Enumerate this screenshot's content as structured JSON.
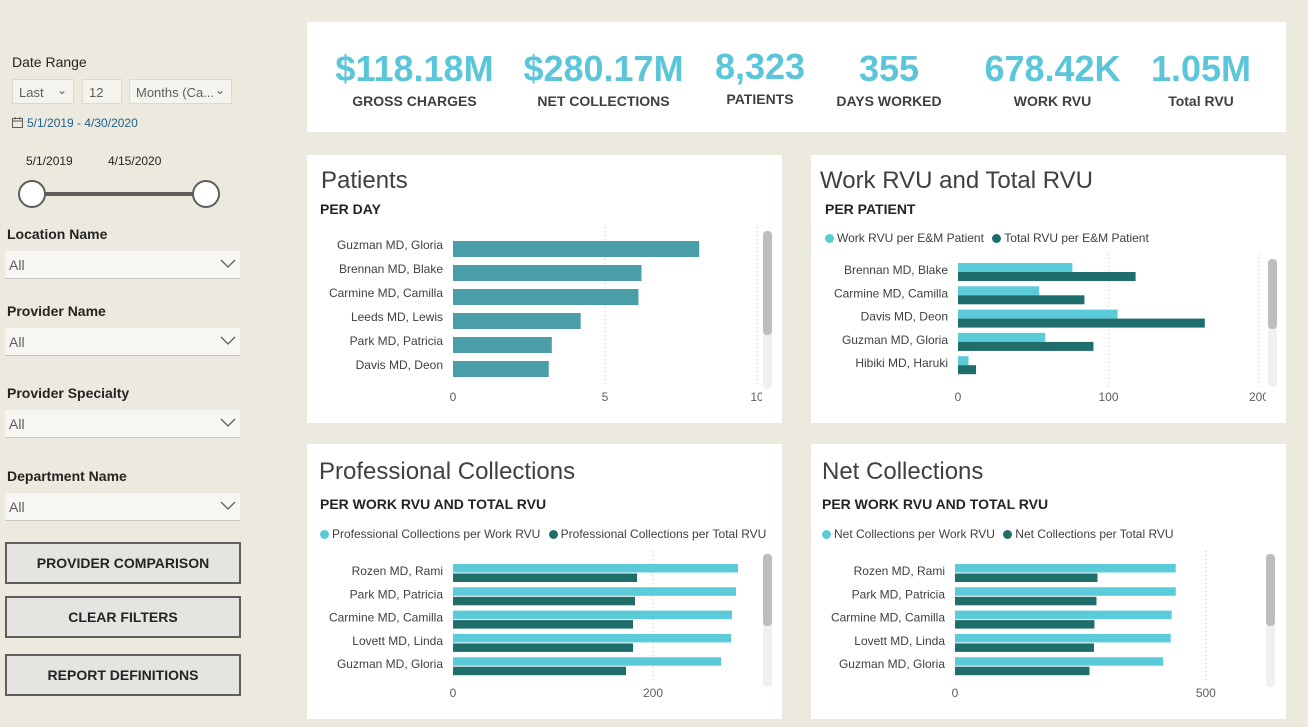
{
  "colors": {
    "accent": "#5bc6d9",
    "teal": "#4a9ea8",
    "dark_teal": "#1f6e6c",
    "light_teal": "#5bcbd9"
  },
  "sidebar": {
    "date_range": {
      "title": "Date Range",
      "period_select": "Last",
      "count_value": "12",
      "unit_select": "Months (Ca...",
      "range_text": "5/1/2019 - 4/30/2020",
      "slider_start": "5/1/2019",
      "slider_end": "4/15/2020"
    },
    "filters": [
      {
        "label": "Location Name",
        "value": "All"
      },
      {
        "label": "Provider Name",
        "value": "All"
      },
      {
        "label": "Provider Specialty",
        "value": "All"
      },
      {
        "label": "Department Name",
        "value": "All"
      }
    ],
    "buttons": {
      "provider_comparison": "PROVIDER COMPARISON",
      "clear_filters": "CLEAR FILTERS",
      "report_definitions": "REPORT DEFINITIONS"
    }
  },
  "kpis": [
    {
      "value": "$118.18M",
      "label": "GROSS CHARGES"
    },
    {
      "value": "$280.17M",
      "label": "NET COLLECTIONS"
    },
    {
      "value": "8,323",
      "label": "PATIENTS"
    },
    {
      "value": "355",
      "label": "DAYS WORKED"
    },
    {
      "value": "678.42K",
      "label": "WORK RVU"
    },
    {
      "value": "1.05M",
      "label": "Total RVU"
    }
  ],
  "chart_data": [
    {
      "type": "bar",
      "title": "Patients",
      "subtitle": "PER DAY",
      "categories": [
        "Guzman MD, Gloria",
        "Brennan MD, Blake",
        "Carmine MD, Camilla",
        "Leeds MD, Lewis",
        "Park MD, Patricia",
        "Davis MD, Deon"
      ],
      "values": [
        8.1,
        6.2,
        6.1,
        4.2,
        3.25,
        3.15
      ],
      "xlim": [
        0,
        10
      ],
      "ticks": [
        0,
        5,
        10
      ],
      "tick_labels": [
        "0",
        "5",
        "10"
      ]
    },
    {
      "type": "bar",
      "title": "Work RVU and Total RVU",
      "subtitle": "PER PATIENT",
      "categories": [
        "Brennan MD, Blake",
        "Carmine MD, Camilla",
        "Davis MD, Deon",
        "Guzman MD, Gloria",
        "Hibiki MD, Haruki"
      ],
      "series": [
        {
          "name": "Work RVU per E&M Patient",
          "values": [
            76,
            54,
            106,
            58,
            7
          ]
        },
        {
          "name": "Total RVU per E&M Patient",
          "values": [
            118,
            84,
            164,
            90,
            12
          ]
        }
      ],
      "xlim": [
        0,
        200
      ],
      "ticks": [
        0,
        100,
        200
      ],
      "tick_labels": [
        "0",
        "100",
        "200"
      ]
    },
    {
      "type": "bar",
      "title": "Professional Collections",
      "subtitle": "PER WORK RVU AND TOTAL RVU",
      "categories": [
        "Rozen MD, Rami",
        "Park MD, Patricia",
        "Carmine MD, Camilla",
        "Lovett MD, Linda",
        "Guzman MD, Gloria"
      ],
      "series": [
        {
          "name": "Professional Collections per Work RVU",
          "values": [
            285,
            283,
            279,
            278,
            268
          ]
        },
        {
          "name": "Professional Collections per Total RVU",
          "values": [
            184,
            182,
            180,
            180,
            173
          ]
        }
      ],
      "xlim": [
        0,
        300
      ],
      "ticks": [
        0,
        200
      ],
      "tick_labels": [
        "0",
        "200"
      ]
    },
    {
      "type": "bar",
      "title": "Net Collections",
      "subtitle": "PER WORK RVU AND TOTAL RVU",
      "categories": [
        "Rozen MD, Rami",
        "Park MD, Patricia",
        "Carmine MD, Camilla",
        "Lovett MD, Linda",
        "Guzman MD, Gloria"
      ],
      "series": [
        {
          "name": "Net Collections per Work RVU",
          "values": [
            440,
            440,
            432,
            430,
            415
          ]
        },
        {
          "name": "Net Collections per Total RVU",
          "values": [
            284,
            282,
            278,
            277,
            268
          ]
        }
      ],
      "xlim": [
        0,
        600
      ],
      "ticks": [
        0,
        500
      ],
      "tick_labels": [
        "0",
        "500"
      ]
    }
  ]
}
